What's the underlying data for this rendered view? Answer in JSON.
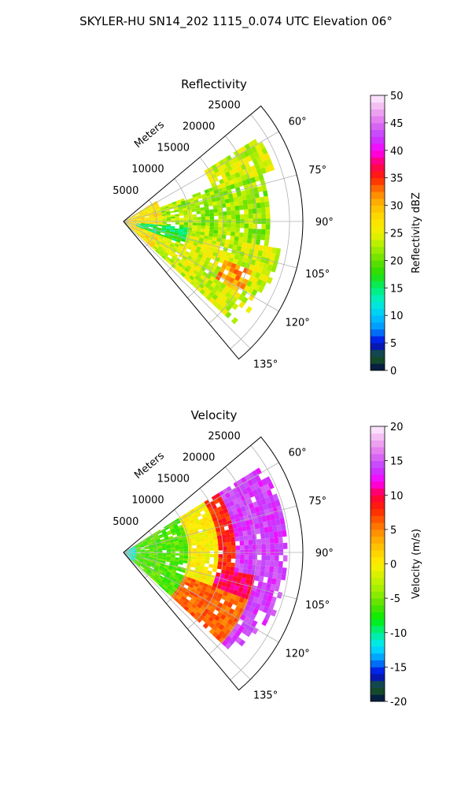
{
  "figure": {
    "title": "SKYLER-HU  SN14_202  1115_0.074 UTC Elevation 06°"
  },
  "chart_data": [
    {
      "type": "heatmap",
      "projection": "polar-sector",
      "title": "Reflectivity",
      "radial_label": "Meters",
      "radial_ticks": [
        5000,
        10000,
        15000,
        20000,
        25000
      ],
      "rmax": 27000,
      "theta_range_deg": [
        50,
        140
      ],
      "theta_ticks": [
        {
          "deg": 60,
          "label": "60°"
        },
        {
          "deg": 75,
          "label": "75°"
        },
        {
          "deg": 90,
          "label": "90°"
        },
        {
          "deg": 105,
          "label": "105°"
        },
        {
          "deg": 120,
          "label": "120°"
        },
        {
          "deg": 135,
          "label": "135°"
        }
      ],
      "grid": true,
      "colorbar": {
        "label": "Reflectivity dBZ",
        "range": [
          0,
          50
        ],
        "ticks": [
          0,
          5,
          10,
          15,
          20,
          25,
          30,
          35,
          40,
          45,
          50
        ],
        "colormap": [
          {
            "v": 0,
            "c": "#000a4a"
          },
          {
            "v": 2.5,
            "c": "#1b5e20"
          },
          {
            "v": 5,
            "c": "#0000e0"
          },
          {
            "v": 7.5,
            "c": "#0090ff"
          },
          {
            "v": 10,
            "c": "#00c8ff"
          },
          {
            "v": 12.5,
            "c": "#00f0d0"
          },
          {
            "v": 15,
            "c": "#00f070"
          },
          {
            "v": 17.5,
            "c": "#22dd00"
          },
          {
            "v": 20,
            "c": "#66e000"
          },
          {
            "v": 22.5,
            "c": "#aaee00"
          },
          {
            "v": 25,
            "c": "#eef000"
          },
          {
            "v": 27.5,
            "c": "#ffe000"
          },
          {
            "v": 30,
            "c": "#ffbb00"
          },
          {
            "v": 32.5,
            "c": "#ff7f00"
          },
          {
            "v": 35,
            "c": "#ff2000"
          },
          {
            "v": 37.5,
            "c": "#ff0060"
          },
          {
            "v": 40,
            "c": "#ff00ff"
          },
          {
            "v": 42.5,
            "c": "#c040ff"
          },
          {
            "v": 45,
            "c": "#e070f0"
          },
          {
            "v": 47.5,
            "c": "#f0b0f0"
          },
          {
            "v": 50,
            "c": "#fff0ff"
          }
        ]
      },
      "field_regions": [
        {
          "theta": [
            58,
            132
          ],
          "r": [
            0,
            6000
          ],
          "value": 27
        },
        {
          "theta": [
            100,
            132
          ],
          "r": [
            6000,
            24000
          ],
          "value": 24
        },
        {
          "theta": [
            68,
            100
          ],
          "r": [
            6000,
            22000
          ],
          "value": 22
        },
        {
          "theta": [
            58,
            72
          ],
          "r": [
            14000,
            24000
          ],
          "value": 24
        },
        {
          "theta": [
            95,
            110
          ],
          "r": [
            2000,
            10000
          ],
          "value": 16
        },
        {
          "theta": [
            110,
            122
          ],
          "r": [
            16000,
            21000
          ],
          "value": 31
        }
      ]
    },
    {
      "type": "heatmap",
      "projection": "polar-sector",
      "title": "Velocity",
      "radial_label": "Meters",
      "radial_ticks": [
        5000,
        10000,
        15000,
        20000,
        25000
      ],
      "rmax": 27000,
      "theta_range_deg": [
        50,
        140
      ],
      "theta_ticks": [
        {
          "deg": 60,
          "label": "60°"
        },
        {
          "deg": 75,
          "label": "75°"
        },
        {
          "deg": 90,
          "label": "90°"
        },
        {
          "deg": 105,
          "label": "105°"
        },
        {
          "deg": 120,
          "label": "120°"
        },
        {
          "deg": 135,
          "label": "135°"
        }
      ],
      "grid": true,
      "colorbar": {
        "label": "Velocity (m/s)",
        "range": [
          -20,
          20
        ],
        "ticks": [
          -20,
          -15,
          -10,
          -5,
          0,
          5,
          10,
          15,
          20
        ],
        "colormap": [
          {
            "v": -20,
            "c": "#000a4a"
          },
          {
            "v": -18,
            "c": "#1b5e20"
          },
          {
            "v": -16,
            "c": "#0000e0"
          },
          {
            "v": -14,
            "c": "#0090ff"
          },
          {
            "v": -12,
            "c": "#00e8ff"
          },
          {
            "v": -10,
            "c": "#00f090"
          },
          {
            "v": -8,
            "c": "#00ee00"
          },
          {
            "v": -6,
            "c": "#55e000"
          },
          {
            "v": -4,
            "c": "#99ee00"
          },
          {
            "v": -2,
            "c": "#ccf200"
          },
          {
            "v": 0,
            "c": "#ffee00"
          },
          {
            "v": 2,
            "c": "#ffcc00"
          },
          {
            "v": 4,
            "c": "#ffa000"
          },
          {
            "v": 6,
            "c": "#ff6600"
          },
          {
            "v": 8,
            "c": "#ff2200"
          },
          {
            "v": 10,
            "c": "#ff0044"
          },
          {
            "v": 12,
            "c": "#ff00ff"
          },
          {
            "v": 14,
            "c": "#c040ff"
          },
          {
            "v": 16,
            "c": "#e070f0"
          },
          {
            "v": 18,
            "c": "#f0b0f0"
          },
          {
            "v": 20,
            "c": "#fff0ff"
          }
        ]
      },
      "field_regions": [
        {
          "theta": [
            58,
            132
          ],
          "r": [
            0,
            2000
          ],
          "value": -11
        },
        {
          "theta": [
            58,
            132
          ],
          "r": [
            2000,
            10000
          ],
          "value": -6
        },
        {
          "theta": [
            58,
            132
          ],
          "r": [
            10000,
            14000
          ],
          "value": 0
        },
        {
          "theta": [
            58,
            132
          ],
          "r": [
            14000,
            17000
          ],
          "value": 8
        },
        {
          "theta": [
            58,
            132
          ],
          "r": [
            17000,
            25000
          ],
          "value": 14
        },
        {
          "theta": [
            100,
            132
          ],
          "r": [
            14000,
            20000
          ],
          "value": 10
        },
        {
          "theta": [
            110,
            132
          ],
          "r": [
            10000,
            20000
          ],
          "value": 6
        }
      ]
    }
  ]
}
